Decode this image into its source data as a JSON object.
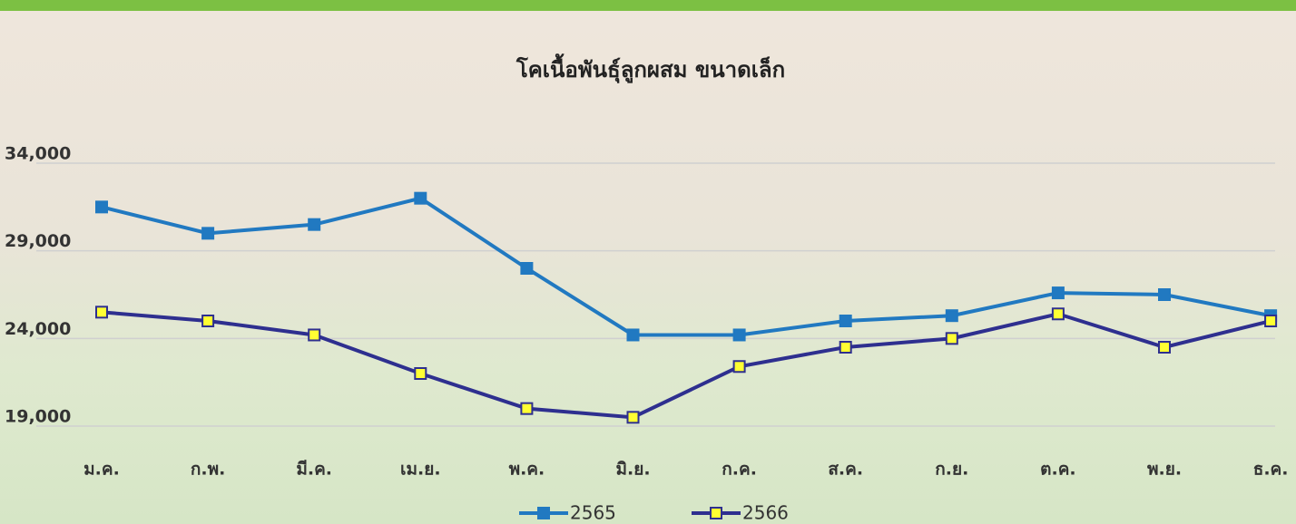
{
  "chart_data": {
    "type": "line",
    "title": "โคเนื้อพันธุ์ลูกผสม ขนาดเล็ก",
    "categories": [
      "ม.ค.",
      "ก.พ.",
      "มี.ค.",
      "เม.ย.",
      "พ.ค.",
      "มิ.ย.",
      "ก.ค.",
      "ส.ค.",
      "ก.ย.",
      "ต.ค.",
      "พ.ย.",
      "ธ.ค."
    ],
    "series": [
      {
        "name": "2565",
        "color": "#2179c1",
        "marker_fill": "#2179c1",
        "values": [
          31500,
          30000,
          30500,
          32000,
          28000,
          24200,
          24200,
          25000,
          25300,
          26600,
          26500,
          25300
        ]
      },
      {
        "name": "2566",
        "color": "#2e2f8f",
        "marker_fill": "#ffff33",
        "values": [
          25500,
          25000,
          24200,
          22000,
          20000,
          19500,
          22400,
          23500,
          24000,
          25400,
          23500,
          25000
        ]
      }
    ],
    "ylim": [
      19000,
      34000
    ],
    "yticks": [
      {
        "value": 19000,
        "label": "19,000"
      },
      {
        "value": 24000,
        "label": "24,000"
      },
      {
        "value": 29000,
        "label": "29,000"
      },
      {
        "value": 34000,
        "label": "34,000"
      }
    ],
    "grid": true,
    "legend": "bottom"
  }
}
